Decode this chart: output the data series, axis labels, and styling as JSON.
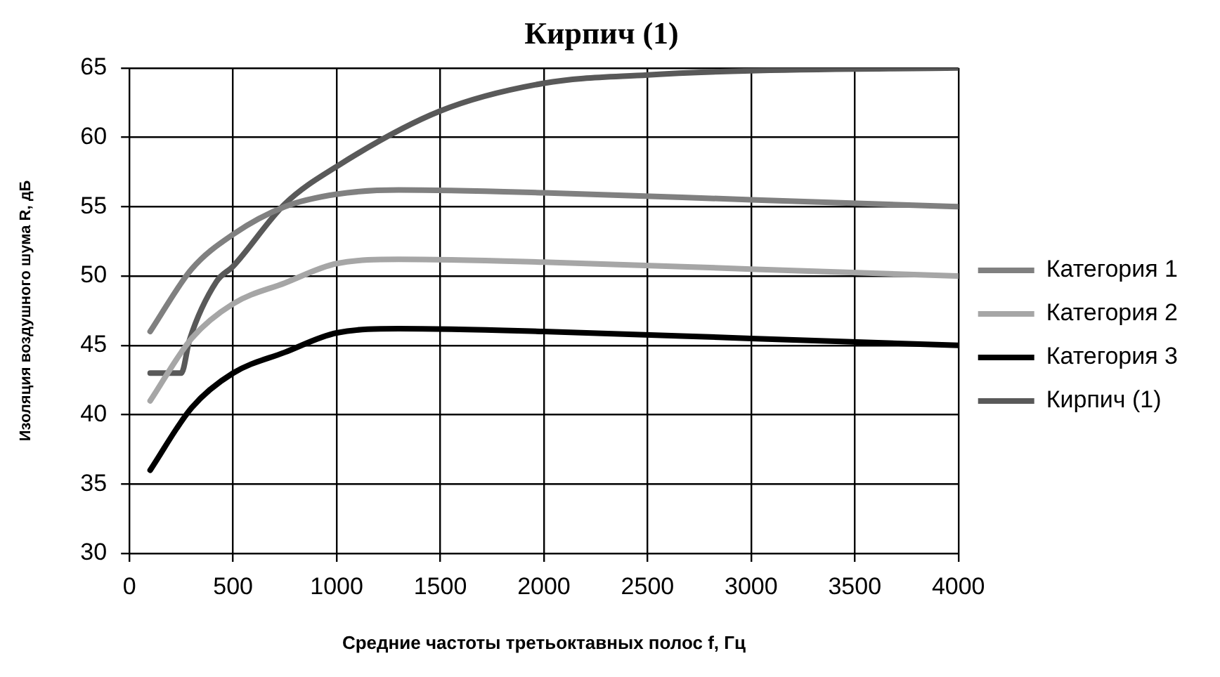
{
  "chart_data": {
    "type": "line",
    "title": "Кирпич (1)",
    "xlabel": "Средние частоты третьоктавных полос f, Гц",
    "ylabel": "Изоляция воздушного шума R, дБ",
    "xlim": [
      0,
      4000
    ],
    "xticks": [
      0,
      500,
      1000,
      1500,
      2000,
      2500,
      3000,
      3500,
      4000
    ],
    "ylim": [
      30,
      65
    ],
    "yticks": [
      30,
      35,
      40,
      45,
      50,
      55,
      60,
      65
    ],
    "grid": true,
    "legend": "right",
    "marker": "none",
    "line_style": "solid",
    "series": [
      {
        "name": "Категория 1",
        "color": "#808080",
        "x": [
          100,
          300,
          500,
          750,
          1000,
          1300,
          2000,
          3000,
          4000
        ],
        "values": [
          46,
          50.5,
          53,
          55,
          55.9,
          56.2,
          56,
          55.5,
          55
        ]
      },
      {
        "name": "Категория 2",
        "color": "#a6a6a6",
        "x": [
          100,
          300,
          500,
          750,
          1000,
          1300,
          2000,
          3000,
          4000
        ],
        "values": [
          41,
          45.5,
          48,
          49.5,
          50.9,
          51.2,
          51,
          50.5,
          50
        ]
      },
      {
        "name": "Категория 3",
        "color": "#000000",
        "x": [
          100,
          300,
          500,
          750,
          1000,
          1300,
          2000,
          3000,
          4000
        ],
        "values": [
          36,
          40.5,
          43,
          44.5,
          45.9,
          46.2,
          46,
          45.5,
          45
        ]
      },
      {
        "name": "Кирпич (1)",
        "color": "#595959",
        "x": [
          100,
          250,
          290,
          420,
          500,
          750,
          1000,
          1500,
          2000,
          2500,
          3000,
          4000
        ],
        "values": [
          43,
          43,
          45.4,
          49.6,
          50.7,
          55.2,
          57.9,
          61.9,
          63.9,
          64.5,
          64.8,
          65
        ]
      }
    ]
  }
}
